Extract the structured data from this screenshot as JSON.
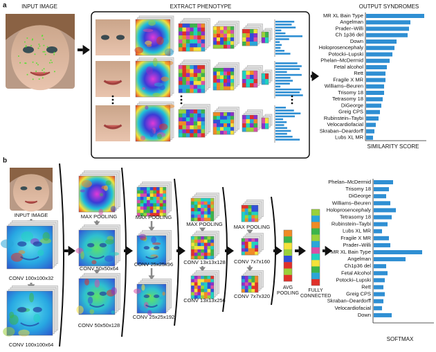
{
  "panel_a": {
    "label": "a",
    "input_title": "INPUT IMAGE",
    "extract_title": "EXTRACT PHENOTYPE",
    "output_title": "OUTPUT SYNDROMES",
    "chart": {
      "type": "bar",
      "x_label": "SIMILARITY SCORE",
      "color": "#2f8fd3",
      "categories": [
        "MR XL Bain Type",
        "Angelman",
        "Prader–Willi",
        "Ch 1p36 del",
        "Down",
        "Holoprosencephaly",
        "Potocki–Lupski",
        "Phelan–McDermid",
        "Fetal alcohol",
        "Rett",
        "Fragile X MR",
        "Williams–Beuren",
        "Trisomy 18",
        "Tetrasomy 18",
        "DiGeorge",
        "Greig CPS",
        "Rubinstein–Taybi",
        "Velocardiofacial",
        "Skraban–Deardorff",
        "Lubs XL MR"
      ],
      "values": [
        84,
        64,
        62,
        60,
        44,
        41,
        38,
        34,
        30,
        28,
        28,
        26,
        26,
        24,
        22,
        20,
        18,
        14,
        12,
        10
      ]
    }
  },
  "panel_b": {
    "label": "b",
    "input_title": "INPUT IMAGE",
    "layers": [
      "CONV 100x100x32",
      "CONV 100x100x64",
      "MAX POOLING",
      "CONV 50x50x64",
      "CONV 50x50x128",
      "MAX POOLING",
      "CONV 25x25x96",
      "CONV 25x25x192",
      "MAX POOLING",
      "CONV 13x13x128",
      "CONV 13x13x256",
      "MAX POOLING",
      "CONV 7x7x160",
      "CONV 7x7x320"
    ],
    "avg_pooling": "AVG POOLING",
    "fully_connected": "FULLY CONNECTED",
    "chart": {
      "type": "bar",
      "x_label": "SOFTMAX",
      "color": "#2f8fd3",
      "categories": [
        "Phelan–McDermid",
        "Trisomy 18",
        "DiGeorge",
        "Williams–Beuren",
        "Holoprosencephaly",
        "Tetrasomy 18",
        "Rubinstein–Taybi",
        "Lubs XL MR",
        "Fragile X MR",
        "Prader–Willi",
        "MR XL Bain Type",
        "Angelman",
        "Ch1p36 del",
        "Fetal Alcohol",
        "Potocki–Lupski",
        "Rett",
        "Greig CPS",
        "Skraban–Deardorff",
        "Velocardiofacial",
        "Down"
      ],
      "values": [
        28,
        22,
        18,
        24,
        32,
        26,
        20,
        12,
        22,
        24,
        70,
        46,
        18,
        20,
        16,
        14,
        16,
        14,
        12,
        26
      ]
    }
  }
}
